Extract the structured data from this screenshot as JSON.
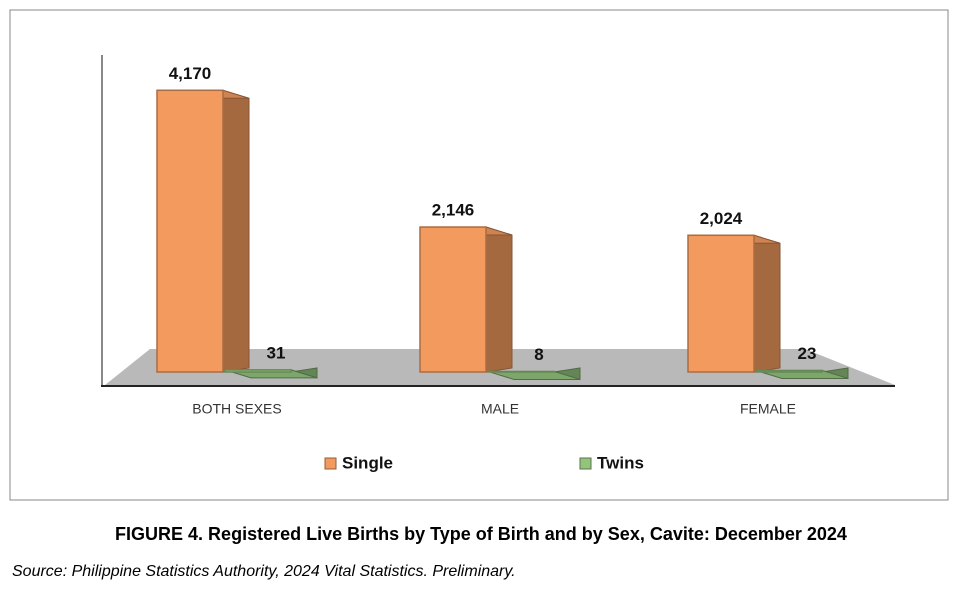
{
  "chart_data": {
    "type": "bar3d",
    "title": "FIGURE 4. Registered Live Births by Type of Birth and by Sex, Cavite: December 2024",
    "source": "Source: Philippine Statistics Authority, 2024 Vital Statistics. Preliminary.",
    "categories": [
      "BOTH SEXES",
      "MALE",
      "FEMALE"
    ],
    "ylim": [
      0,
      4500
    ],
    "series": [
      {
        "name": "Single",
        "color": "#f39a5e",
        "values": [
          4170,
          2146,
          2024
        ],
        "value_labels": [
          "4,170",
          "2,146",
          "2,024"
        ]
      },
      {
        "name": "Twins",
        "color": "#93c47d",
        "values": [
          31,
          8,
          23
        ]
      }
    ]
  }
}
